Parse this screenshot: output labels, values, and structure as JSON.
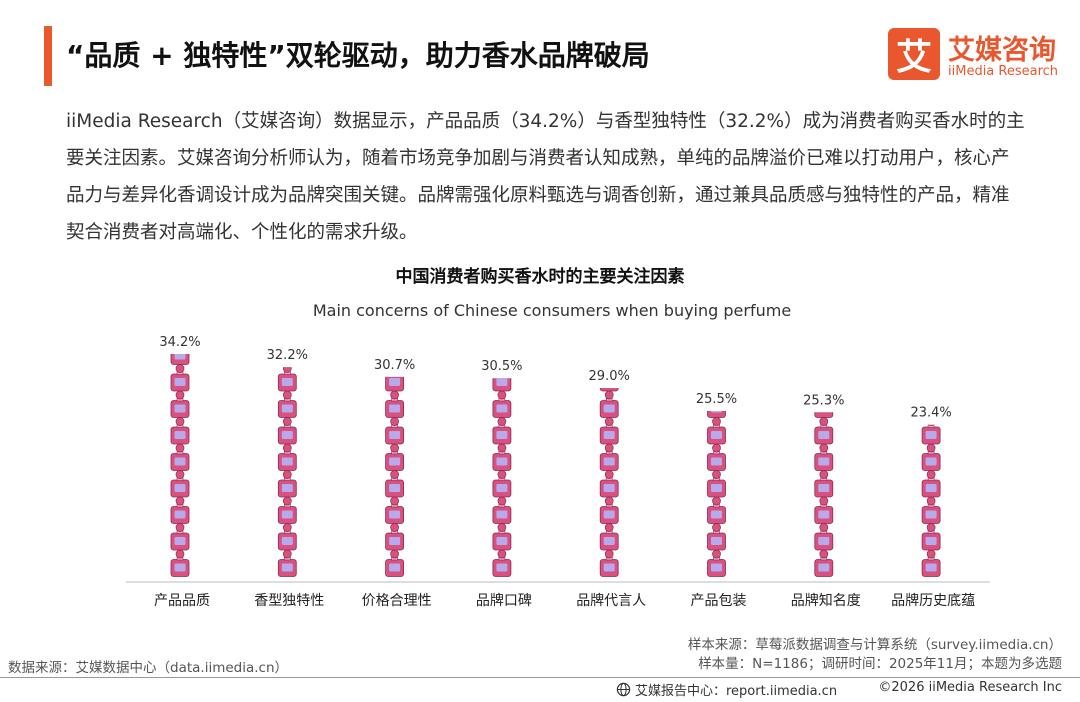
{
  "header": {
    "title": "“品质 + 独特性”双轮驱动，助力香水品牌破局"
  },
  "logo": {
    "mark": "艾",
    "name_cn": "艾媒咨询",
    "name_en": "iiMedia Research"
  },
  "summary": {
    "text": "iiMedia Research（艾媒咨询）数据显示，产品品质（34.2%）与香型独特性（32.2%）成为消费者购买香水时的主要关注因素。艾媒咨询分析师认为，随着市场竞争加剧与消费者认知成熟，单纯的品牌溢价已难以打动用户，核心产品力与差异化香调设计成为品牌突围关键。品牌需强化原料甄选与调香创新，通过兼具品质感与独特性的产品，精准契合消费者对高端化、个性化的需求升级。"
  },
  "chart_data": {
    "type": "bar",
    "title": "中国消费者购买香水时的主要关注因素",
    "subtitle": "Main concerns of Chinese consumers when buying perfume",
    "categories": [
      "产品品质",
      "香型独特性",
      "价格合理性",
      "品牌口碑",
      "品牌代言人",
      "产品包装",
      "品牌知名度",
      "品牌历史底蕴"
    ],
    "values": [
      34.2,
      32.2,
      30.7,
      30.5,
      29.0,
      25.5,
      25.3,
      23.4
    ],
    "value_labels": [
      "34.2%",
      "32.2%",
      "30.7%",
      "30.5%",
      "29.0%",
      "25.5%",
      "25.3%",
      "23.4%"
    ],
    "unit": "%",
    "ylim": [
      0,
      34.2
    ],
    "grid": false,
    "legend": "none",
    "colors": {
      "bottle_body": "#d9517e",
      "bottle_window": "#b8a8ec",
      "bottle_cap": "#f0a8c4",
      "bottle_outline": "#8a2a52",
      "axis": "#bbbbbb"
    }
  },
  "footer": {
    "source_left": "数据来源：艾媒数据中心（data.iimedia.cn）",
    "sample_source": "样本来源：草莓派数据调查与计算系统（survey.iimedia.cn）",
    "sample_size": "样本量：N=1186；调研时间：2025年11月；本题为多选题",
    "report_center": "艾媒报告中心：report.iimedia.cn",
    "copyright": "©2026  iiMedia Research  Inc"
  }
}
